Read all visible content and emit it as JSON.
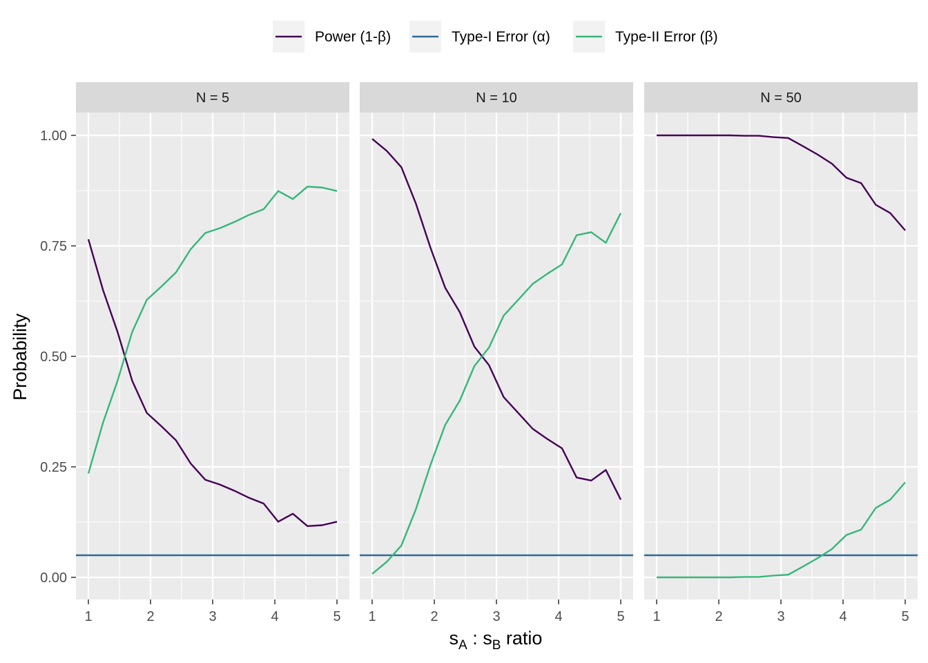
{
  "chart_data": {
    "type": "line",
    "layout": "faceted-3-panels",
    "ylabel": "Probability",
    "xlabel": {
      "s1": "s",
      "sub1": "A",
      "sep": " : ",
      "s2": "s",
      "sub2": "B",
      "tail": " ratio"
    },
    "ylim": [
      -0.05,
      1.1
    ],
    "xlim": [
      0.8,
      5.2
    ],
    "y_ticks": [
      0.0,
      0.25,
      0.5,
      0.75,
      1.0
    ],
    "y_tick_labels": [
      "0.00",
      "0.25",
      "0.50",
      "0.75",
      "1.00"
    ],
    "x_ticks": [
      1,
      2,
      3,
      4,
      5
    ],
    "x_tick_labels": [
      "1",
      "2",
      "3",
      "4",
      "5"
    ],
    "grid": true,
    "legend_position": "top",
    "series_style": [
      {
        "name": "Power (1-β)",
        "color": "#440154"
      },
      {
        "name": "Type-I Error (α)",
        "color": "#2c6a99"
      },
      {
        "name": "Type-II Error (β)",
        "color": "#35b779"
      }
    ],
    "x": [
      1.0,
      1.235,
      1.47,
      1.705,
      1.94,
      2.175,
      2.41,
      2.645,
      2.88,
      3.115,
      3.35,
      3.585,
      3.82,
      4.055,
      4.29,
      4.525,
      4.76,
      5.0
    ],
    "panels": [
      {
        "title": "N = 5",
        "series": [
          {
            "name": "Power (1-β)",
            "values": [
              0.765,
              0.65,
              0.555,
              0.445,
              0.372,
              0.342,
              0.31,
              0.258,
              0.221,
              0.21,
              0.196,
              0.18,
              0.167,
              0.126,
              0.144,
              0.116,
              0.118,
              0.126
            ]
          },
          {
            "name": "Type-I Error (α)",
            "values": [
              0.05,
              0.05,
              0.05,
              0.05,
              0.05,
              0.05,
              0.05,
              0.05,
              0.05,
              0.05,
              0.05,
              0.05,
              0.05,
              0.05,
              0.05,
              0.05,
              0.05,
              0.05
            ]
          },
          {
            "name": "Type-II Error (β)",
            "values": [
              0.235,
              0.35,
              0.445,
              0.555,
              0.628,
              0.658,
              0.69,
              0.742,
              0.779,
              0.79,
              0.804,
              0.82,
              0.833,
              0.874,
              0.856,
              0.884,
              0.882,
              0.874
            ]
          }
        ]
      },
      {
        "title": "N = 10",
        "series": [
          {
            "name": "Power (1-β)",
            "values": [
              0.992,
              0.965,
              0.928,
              0.845,
              0.745,
              0.655,
              0.6,
              0.522,
              0.48,
              0.408,
              0.372,
              0.336,
              0.313,
              0.292,
              0.226,
              0.219,
              0.243,
              0.176
            ]
          },
          {
            "name": "Type-I Error (α)",
            "values": [
              0.05,
              0.05,
              0.05,
              0.05,
              0.05,
              0.05,
              0.05,
              0.05,
              0.05,
              0.05,
              0.05,
              0.05,
              0.05,
              0.05,
              0.05,
              0.05,
              0.05,
              0.05
            ]
          },
          {
            "name": "Type-II Error (β)",
            "values": [
              0.008,
              0.035,
              0.072,
              0.155,
              0.255,
              0.345,
              0.4,
              0.478,
              0.52,
              0.592,
              0.628,
              0.664,
              0.687,
              0.708,
              0.774,
              0.781,
              0.757,
              0.824
            ]
          }
        ]
      },
      {
        "title": "N = 50",
        "series": [
          {
            "name": "Power (1-β)",
            "values": [
              1.0,
              1.0,
              1.0,
              1.0,
              1.0,
              1.0,
              0.999,
              0.999,
              0.996,
              0.994,
              0.976,
              0.957,
              0.936,
              0.904,
              0.892,
              0.843,
              0.824,
              0.785
            ]
          },
          {
            "name": "Type-I Error (α)",
            "values": [
              0.05,
              0.05,
              0.05,
              0.05,
              0.05,
              0.05,
              0.05,
              0.05,
              0.05,
              0.05,
              0.05,
              0.05,
              0.05,
              0.05,
              0.05,
              0.05,
              0.05,
              0.05
            ]
          },
          {
            "name": "Type-II Error (β)",
            "values": [
              0.0,
              0.0,
              0.0,
              0.0,
              0.0,
              0.0,
              0.001,
              0.001,
              0.004,
              0.006,
              0.024,
              0.043,
              0.064,
              0.096,
              0.108,
              0.157,
              0.176,
              0.215
            ]
          }
        ]
      }
    ]
  }
}
